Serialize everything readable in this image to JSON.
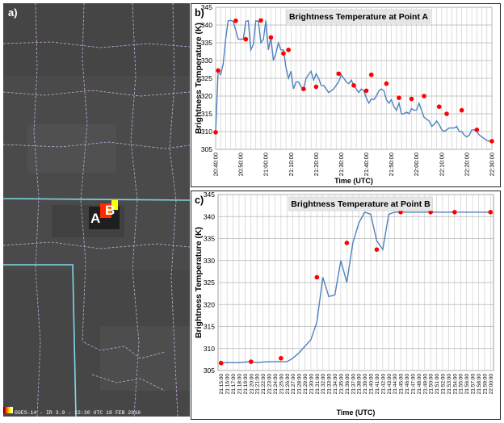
{
  "satellite": {
    "panel_label": "a)",
    "marker_a": "A",
    "marker_b": "B",
    "caption": "GOES-14 - IR 3.9 - 22:30 UTC 18 FEB 2016"
  },
  "chart_data": [
    {
      "type": "line",
      "panel_label": "b)",
      "title": "Brightness Temperature at Point A",
      "xlabel": "Time (UTC)",
      "ylabel": "Brightness Temperature (K)",
      "ylim": [
        305,
        345
      ],
      "yticks": [
        305,
        310,
        315,
        320,
        325,
        330,
        335,
        340,
        345
      ],
      "xlim": [
        "20:40:00",
        "22:30:00"
      ],
      "xticks": [
        "20:40:00",
        "20:50:00",
        "21:00:00",
        "21:10:00",
        "21:20:00",
        "21:30:00",
        "21:40:00",
        "21:50:00",
        "22:00:00",
        "22:10:00",
        "22:20:00",
        "22:30:00"
      ],
      "grid": true,
      "series": [
        {
          "line_color": "#4f81bd",
          "x": [
            "20:40:00",
            "20:41:00",
            "20:42:00",
            "20:43:00",
            "20:44:00",
            "20:45:00",
            "20:46:00",
            "20:47:00",
            "20:48:00",
            "20:49:00",
            "20:50:00",
            "20:51:00",
            "20:52:00",
            "20:53:00",
            "20:54:00",
            "20:55:00",
            "20:56:00",
            "20:57:00",
            "20:58:00",
            "20:59:00",
            "21:00:00",
            "21:01:00",
            "21:02:00",
            "21:03:00",
            "21:04:00",
            "21:05:00",
            "21:06:00",
            "21:07:00",
            "21:08:00",
            "21:09:00",
            "21:10:00",
            "21:11:00",
            "21:12:00",
            "21:13:00",
            "21:14:00",
            "21:15:00",
            "21:16:00",
            "21:17:00",
            "21:18:00",
            "21:19:00",
            "21:20:00",
            "21:21:00",
            "21:22:00",
            "21:23:00",
            "21:24:00",
            "21:25:00",
            "21:26:00",
            "21:27:00",
            "21:28:00",
            "21:29:00",
            "21:30:00",
            "21:31:00",
            "21:32:00",
            "21:33:00",
            "21:34:00",
            "21:35:00",
            "21:36:00",
            "21:37:00",
            "21:38:00",
            "21:39:00",
            "21:40:00",
            "21:41:00",
            "21:42:00",
            "21:43:00",
            "21:44:00",
            "21:45:00",
            "21:46:00",
            "21:47:00",
            "21:48:00",
            "21:49:00",
            "21:50:00",
            "21:51:00",
            "21:52:00",
            "21:53:00",
            "21:54:00",
            "21:55:00",
            "21:56:00",
            "21:57:00",
            "21:58:00",
            "21:59:00",
            "22:00:00",
            "22:01:00",
            "22:02:00",
            "22:03:00",
            "22:04:00",
            "22:05:00",
            "22:06:00",
            "22:07:00",
            "22:08:00",
            "22:09:00",
            "22:10:00",
            "22:11:00",
            "22:12:00",
            "22:13:00",
            "22:14:00",
            "22:15:00",
            "22:16:00",
            "22:17:00",
            "22:18:00",
            "22:19:00",
            "22:20:00",
            "22:21:00",
            "22:22:00",
            "22:23:00",
            "22:24:00",
            "22:25:00",
            "22:26:00",
            "22:27:00",
            "22:28:00",
            "22:29:00",
            "22:30:00"
          ],
          "values": [
            309.8,
            327.2,
            326.0,
            329.0,
            336.0,
            341.2,
            341.3,
            341.0,
            338.5,
            336.0,
            336.0,
            336.0,
            341.0,
            341.2,
            333.0,
            334.5,
            341.2,
            341.0,
            335.0,
            336.0,
            341.3,
            333.0,
            336.5,
            330.0,
            332.0,
            335.0,
            333.0,
            333.0,
            328.0,
            325.0,
            327.0,
            322.0,
            324.0,
            324.0,
            322.6,
            322.0,
            325.0,
            326.0,
            327.0,
            324.5,
            326.3,
            325.0,
            323.0,
            323.0,
            322.0,
            321.0,
            321.5,
            322.0,
            323.0,
            324.0,
            326.0,
            325.0,
            324.0,
            323.5,
            324.5,
            323.0,
            322.0,
            321.0,
            322.0,
            321.5,
            319.5,
            318.0,
            319.2,
            319.0,
            320.0,
            321.5,
            322.0,
            321.5,
            319.0,
            318.0,
            319.0,
            317.0,
            316.0,
            318.0,
            315.0,
            315.0,
            315.5,
            315.0,
            316.5,
            316.0,
            316.0,
            318.0,
            316.0,
            314.0,
            313.5,
            313.0,
            311.5,
            312.0,
            313.0,
            312.0,
            310.5,
            310.0,
            310.5,
            311.0,
            311.0,
            311.0,
            311.5,
            310.0,
            310.0,
            309.0,
            308.5,
            309.0,
            310.5,
            310.5,
            310.0,
            309.0,
            308.5,
            308.0,
            307.5,
            307.3,
            307.3
          ],
          "marker_color": "#ff0000",
          "markers": [
            {
              "x": "20:40:00",
              "y": 309.8
            },
            {
              "x": "20:41:00",
              "y": 327.2
            },
            {
              "x": "20:48:00",
              "y": 341.2
            },
            {
              "x": "20:52:00",
              "y": 336.0
            },
            {
              "x": "20:58:00",
              "y": 341.3
            },
            {
              "x": "21:02:00",
              "y": 336.5
            },
            {
              "x": "21:07:00",
              "y": 332.0
            },
            {
              "x": "21:09:00",
              "y": 333.0
            },
            {
              "x": "21:15:00",
              "y": 322.0
            },
            {
              "x": "21:20:00",
              "y": 322.6
            },
            {
              "x": "21:29:00",
              "y": 326.3
            },
            {
              "x": "21:35:00",
              "y": 323.0
            },
            {
              "x": "21:40:00",
              "y": 321.5
            },
            {
              "x": "21:42:00",
              "y": 326.0
            },
            {
              "x": "21:48:00",
              "y": 323.5
            },
            {
              "x": "21:53:00",
              "y": 319.5
            },
            {
              "x": "21:58:00",
              "y": 319.2
            },
            {
              "x": "22:03:00",
              "y": 320.0
            },
            {
              "x": "22:09:00",
              "y": 317.0
            },
            {
              "x": "22:12:00",
              "y": 315.0
            },
            {
              "x": "22:18:00",
              "y": 316.0
            },
            {
              "x": "22:24:00",
              "y": 310.5
            },
            {
              "x": "22:30:00",
              "y": 307.3
            }
          ]
        }
      ]
    },
    {
      "type": "line",
      "panel_label": "c)",
      "title": "Brightness Temperature at Point B",
      "xlabel": "Time (UTC)",
      "ylabel": "Brightness Temperature (K)",
      "ylim": [
        305,
        345
      ],
      "yticks": [
        305,
        310,
        315,
        320,
        325,
        330,
        335,
        340,
        345
      ],
      "grid": true,
      "categories": [
        "21:15:00",
        "21:16:00",
        "21:17:00",
        "21:18:00",
        "21:19:00",
        "21:20:00",
        "21:21:00",
        "21:22:00",
        "21:23:00",
        "21:24:00",
        "21:25:00",
        "21:26:00",
        "21:27:00",
        "21:28:00",
        "21:29:00",
        "21:30:00",
        "21:31:00",
        "21:32:00",
        "21:33:00",
        "21:34:00",
        "21:35:00",
        "21:36:00",
        "21:37:00",
        "21:38:00",
        "21:39:00",
        "21:40:00",
        "21:41:00",
        "21:42:00",
        "21:43:00",
        "21:44:00",
        "21:45:00",
        "21:46:00",
        "21:47:00",
        "21:48:00",
        "21:49:00",
        "21:50:00",
        "21:51:00",
        "21:52:00",
        "21:53:00",
        "21:54:00",
        "21:55:00",
        "21:56:00",
        "21:57:00",
        "21:58:00",
        "21:59:00",
        "22:00:00"
      ],
      "series": [
        {
          "line_color": "#4f81bd",
          "values": [
            306.7,
            306.8,
            306.8,
            306.8,
            306.9,
            307.0,
            306.8,
            306.9,
            307.0,
            307.0,
            307.0,
            307.0,
            307.8,
            309.0,
            310.5,
            312.0,
            316.0,
            326.2,
            321.8,
            322.2,
            330.0,
            325.0,
            334.0,
            338.5,
            341.0,
            340.5,
            334.5,
            332.5,
            340.5,
            341.0,
            341.0,
            341.0,
            341.0,
            341.0,
            341.0,
            341.0,
            341.0,
            341.0,
            341.0,
            341.0,
            341.0,
            341.0,
            341.0,
            341.0,
            341.0,
            341.0
          ],
          "marker_color": "#ff0000",
          "markers": [
            {
              "x": "21:15:00",
              "y": 306.7
            },
            {
              "x": "21:20:00",
              "y": 307.0
            },
            {
              "x": "21:25:00",
              "y": 307.8
            },
            {
              "x": "21:31:00",
              "y": 326.2
            },
            {
              "x": "21:36:00",
              "y": 334.0
            },
            {
              "x": "21:41:00",
              "y": 332.5
            },
            {
              "x": "21:45:00",
              "y": 341.0
            },
            {
              "x": "21:50:00",
              "y": 341.0
            },
            {
              "x": "21:54:00",
              "y": 341.0
            },
            {
              "x": "22:00:00",
              "y": 341.0
            }
          ]
        }
      ]
    }
  ]
}
